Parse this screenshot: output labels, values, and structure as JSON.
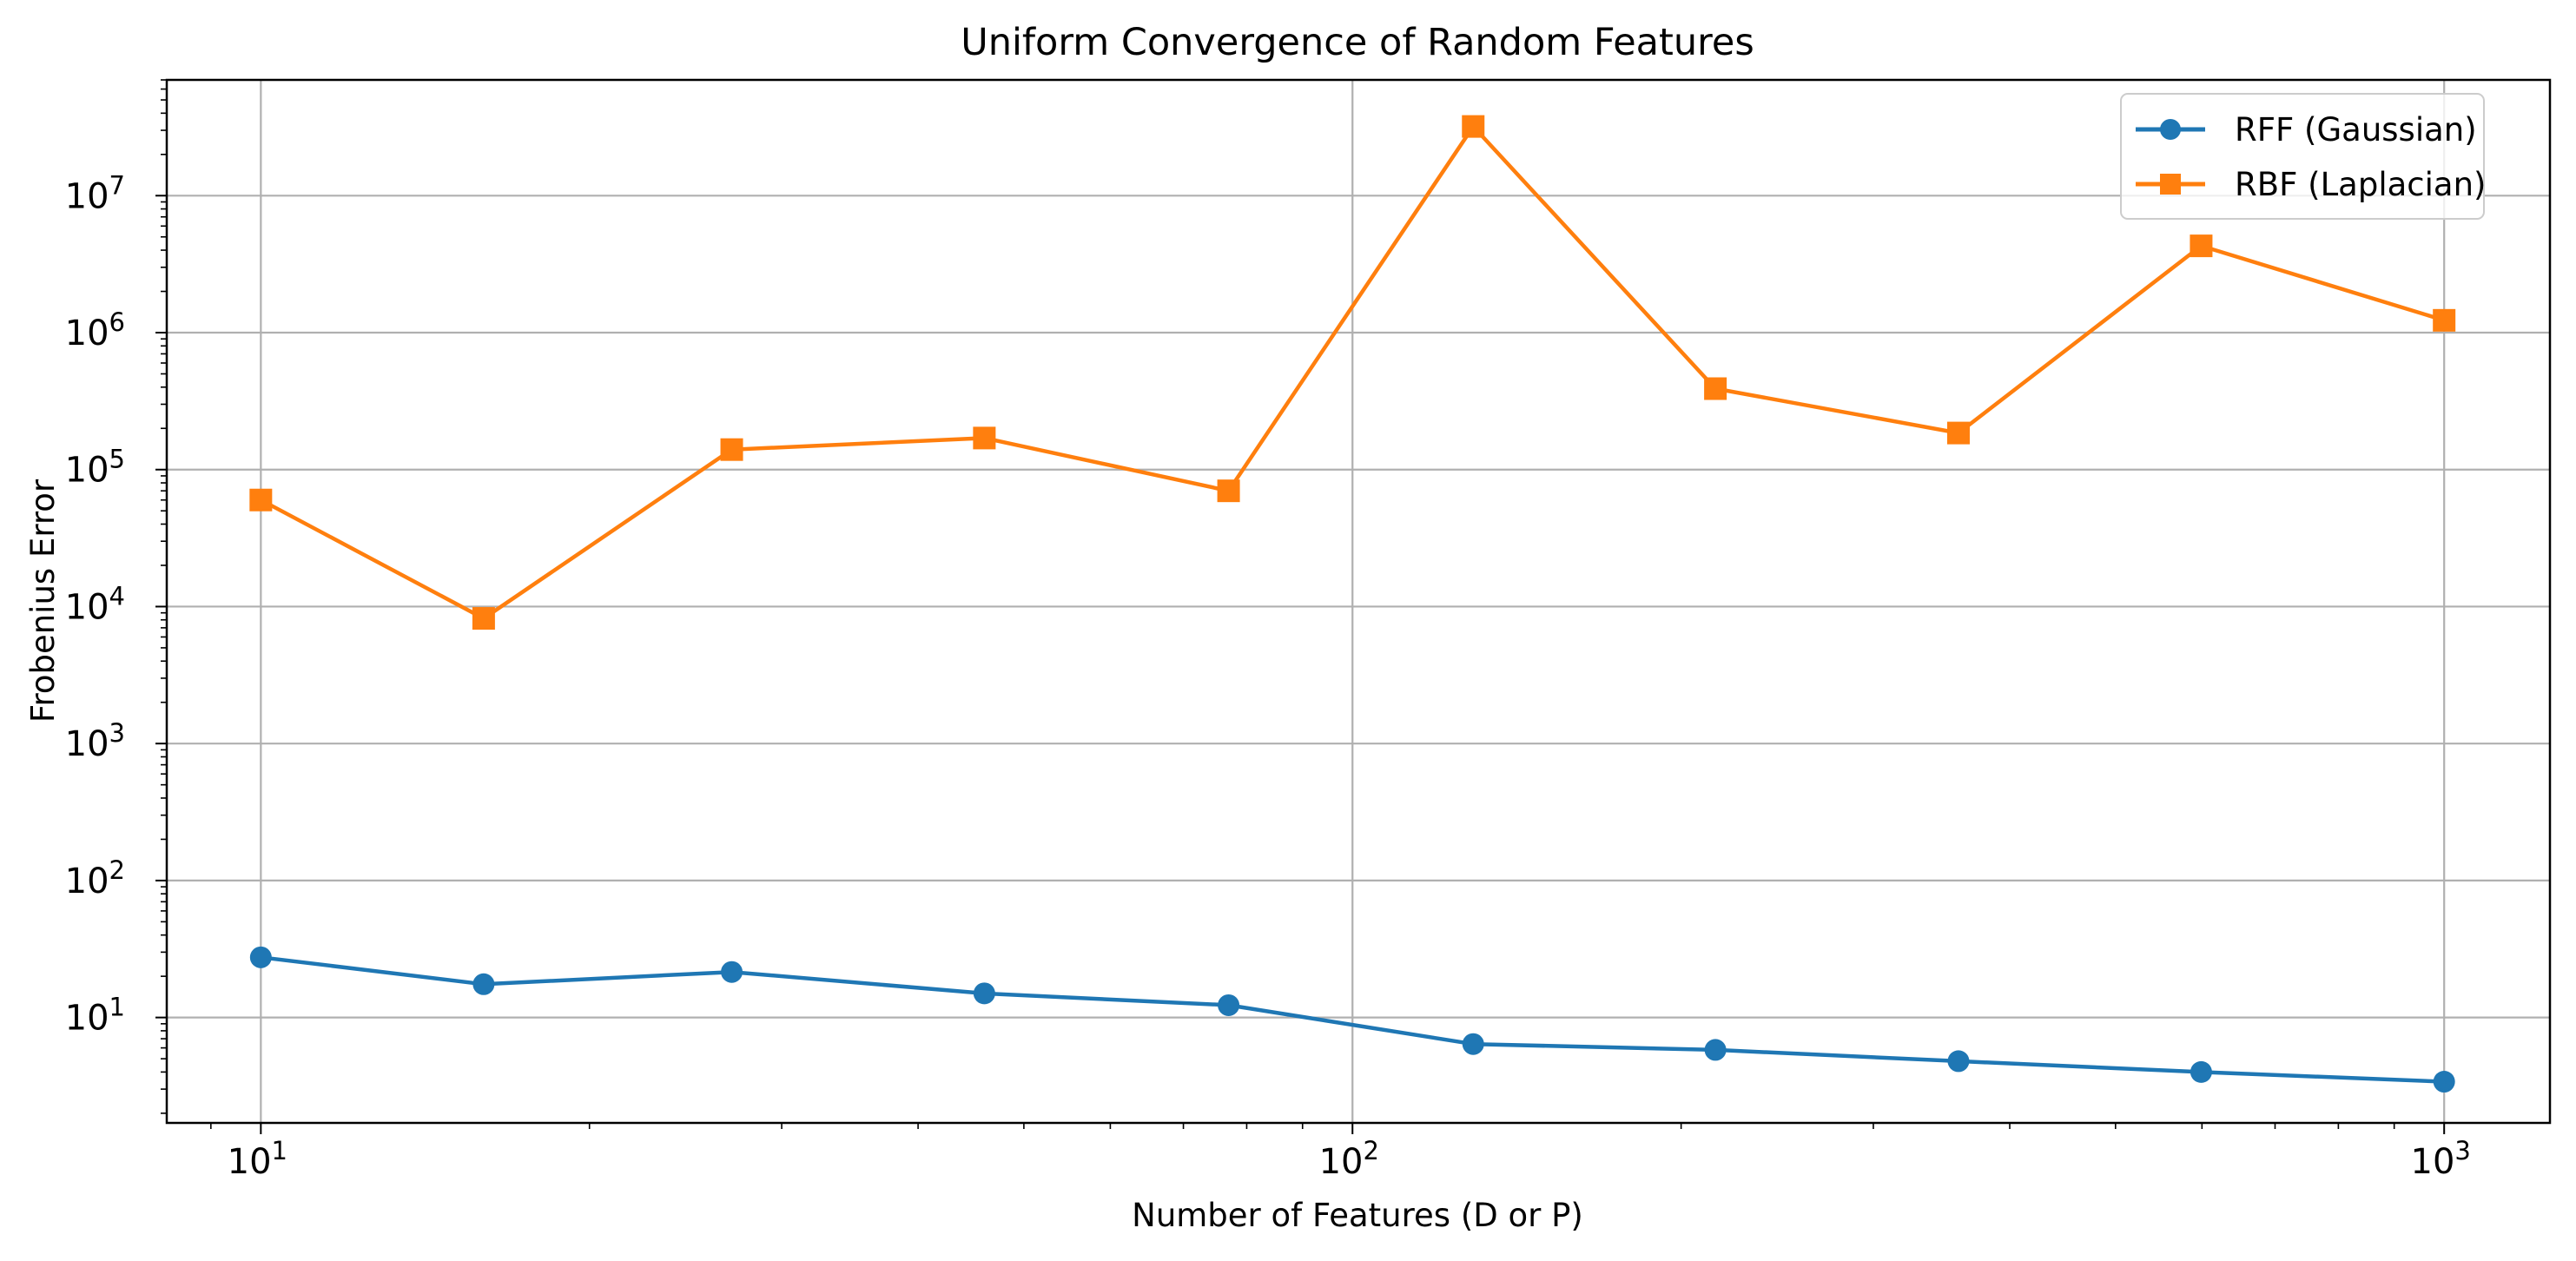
{
  "chart_data": {
    "type": "line",
    "title": "Uniform Convergence of Random Features",
    "xlabel": "Number of Features (D or P)",
    "ylabel": "Frobenius Error",
    "xscale": "log",
    "yscale": "log",
    "xlim": [
      8.2,
      1250
    ],
    "ylim": [
      1.7,
      70000000
    ],
    "grid": true,
    "legend_position": "top-right",
    "x": [
      10,
      16,
      27,
      46,
      77,
      129,
      215,
      359,
      599,
      1000
    ],
    "x_ticks": [
      {
        "base": "10",
        "exp": "1",
        "value": 10
      },
      {
        "base": "10",
        "exp": "2",
        "value": 100
      },
      {
        "base": "10",
        "exp": "3",
        "value": 1000
      }
    ],
    "y_ticks": [
      {
        "base": "10",
        "exp": "1",
        "value": 10
      },
      {
        "base": "10",
        "exp": "2",
        "value": 100
      },
      {
        "base": "10",
        "exp": "3",
        "value": 1000
      },
      {
        "base": "10",
        "exp": "4",
        "value": 10000
      },
      {
        "base": "10",
        "exp": "5",
        "value": 100000
      },
      {
        "base": "10",
        "exp": "6",
        "value": 1000000
      },
      {
        "base": "10",
        "exp": "7",
        "value": 10000000
      }
    ],
    "series": [
      {
        "name": "RFF (Gaussian)",
        "color": "#1f77b4",
        "marker": "circle",
        "values": [
          27.5,
          17.5,
          21.5,
          15,
          12.3,
          6.4,
          5.8,
          4.8,
          4.0,
          3.4
        ]
      },
      {
        "name": "RBF (Laplacian)",
        "color": "#ff7f0e",
        "marker": "square",
        "values": [
          60000,
          8200,
          140000,
          170000,
          70000,
          32000000,
          390000,
          185000,
          4300000,
          1230000
        ]
      }
    ]
  }
}
